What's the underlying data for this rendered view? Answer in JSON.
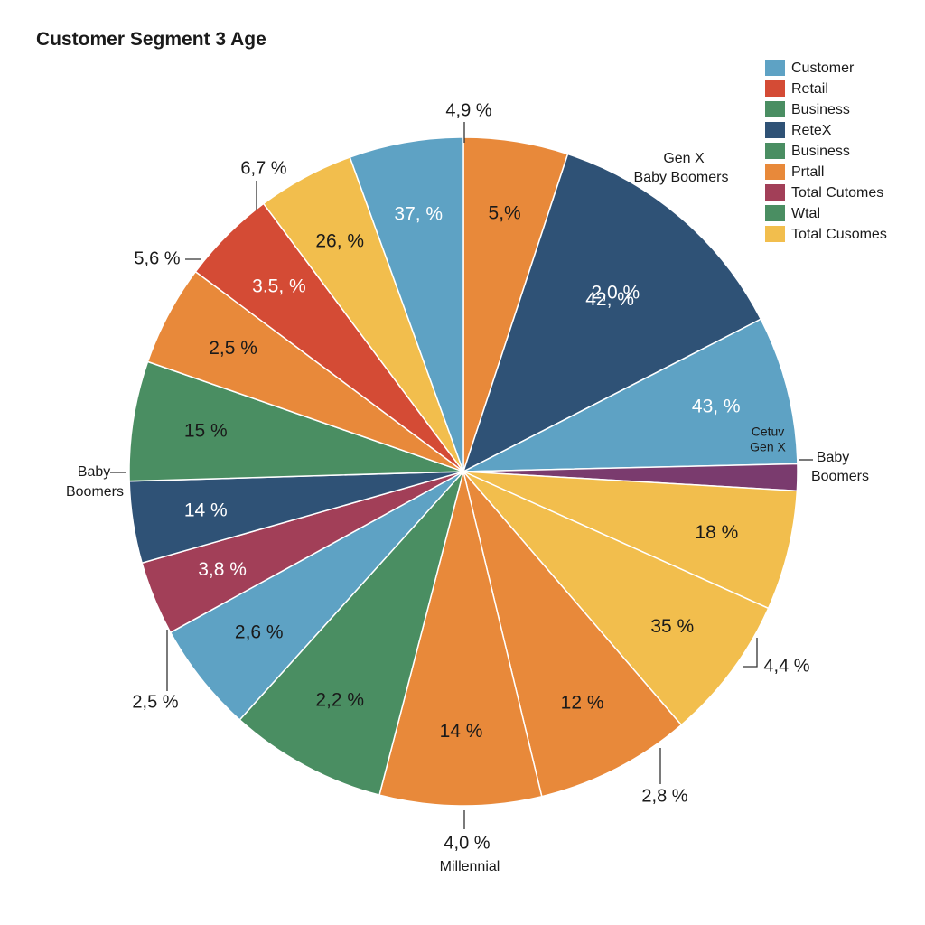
{
  "chart_data": {
    "type": "pie",
    "title": "Customer Segment 3 Age",
    "slices": [
      {
        "value": 5.5,
        "label": "5,%",
        "color": "#E8893A",
        "text": "#1a1a1a"
      },
      {
        "value": 13.5,
        "label": "2,0 % ",
        "label2": "42, %",
        "color": "#2F5276",
        "text": "#ffffff"
      },
      {
        "value": 7.8,
        "label": "43, %",
        "color": "#5EA2C4",
        "text": "#ffffff"
      },
      {
        "value": 1.4,
        "label": "",
        "color": "#7A3B6E",
        "text": "#ffffff"
      },
      {
        "value": 6.3,
        "label": "18 %",
        "color": "#F2BE4D",
        "text": "#1a1a1a"
      },
      {
        "value": 7.6,
        "label": "35 %",
        "color": "#F2BE4D",
        "text": "#1a1a1a"
      },
      {
        "value": 8.2,
        "label": "12 %",
        "color": "#E8893A",
        "text": "#1a1a1a"
      },
      {
        "value": 8.5,
        "label": "14 %",
        "color": "#E8893A",
        "text": "#1a1a1a"
      },
      {
        "value": 8.3,
        "label": "2,2 %",
        "color": "#4A8E62",
        "text": "#1a1a1a"
      },
      {
        "value": 5.8,
        "label": "2,6 %",
        "color": "#5EA2C4",
        "text": "#1a1a1a"
      },
      {
        "value": 3.9,
        "label": "3,8 %",
        "color": "#A23F58",
        "text": "#ffffff"
      },
      {
        "value": 4.3,
        "label": "14 %",
        "color": "#2F5276",
        "text": "#ffffff"
      },
      {
        "value": 6.3,
        "label": "15 %",
        "color": "#4A8E62",
        "text": "#1a1a1a"
      },
      {
        "value": 5.3,
        "label": "2,5 %",
        "color": "#E8893A",
        "text": "#1a1a1a"
      },
      {
        "value": 5.0,
        "label": "3.5, %",
        "color": "#D44B35",
        "text": "#ffffff"
      },
      {
        "value": 5.1,
        "label": "26, %",
        "color": "#F2BE4D",
        "text": "#1a1a1a"
      },
      {
        "value": 6.0,
        "label": "37, %",
        "color": "#5EA2C4",
        "text": "#ffffff"
      }
    ],
    "outer_labels": [
      "4,9 %",
      "6,7 %",
      "5,6 %",
      "2,5 %",
      "4,0 %",
      "2,8 %",
      "4,4 %"
    ],
    "category_labels": {
      "top_right_1": "Gen X",
      "top_right_2": "Baby Boomers",
      "small_slice_1": "Cetuv",
      "small_slice_2": "Gen X",
      "right_1": "Baby",
      "right_2": "Boomers",
      "left_1": "Baby",
      "left_2": "Boomers",
      "bottom": "Millennial"
    },
    "legend": [
      {
        "label": "Customer",
        "color": "#5EA2C4"
      },
      {
        "label": "Retail",
        "color": "#D44B35"
      },
      {
        "label": "Business",
        "color": "#4A8E62"
      },
      {
        "label": "ReteX",
        "color": "#2F5276"
      },
      {
        "label": "Business",
        "color": "#4A8E62"
      },
      {
        "label": "Prtall",
        "color": "#E8893A"
      },
      {
        "label": "Total Cutomes",
        "color": "#A23F58"
      },
      {
        "label": "Wtal",
        "color": "#4A8E62"
      },
      {
        "label": "Total Cusomes",
        "color": "#F2BE4D"
      }
    ]
  }
}
